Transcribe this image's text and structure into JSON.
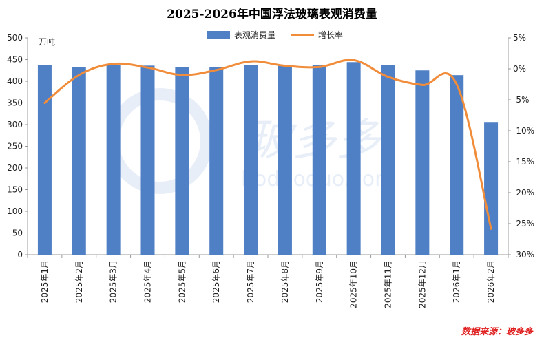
{
  "title": "2025-2026年中国浮法玻璃表观消费量",
  "unit_label": "万吨",
  "source": "数据来源：玻多多",
  "watermark": {
    "text_cn": "玻多多",
    "text_en": "boduoduo.com"
  },
  "colors": {
    "bar": "#4f7fc4",
    "line": "#f08c3a",
    "axis": "#9a9a9a",
    "source": "#e02020"
  },
  "chart_data": {
    "type": "bar",
    "categories": [
      "2025年1月",
      "2025年2月",
      "2025年3月",
      "2025年4月",
      "2025年5月",
      "2025年6月",
      "2025年7月",
      "2025年8月",
      "2025年9月",
      "2025年10月",
      "2025年11月",
      "2025年12月",
      "2026年1月",
      "2026年2月"
    ],
    "series": [
      {
        "name": "表观消费量",
        "type": "bar",
        "axis": "left",
        "values": [
          437,
          432,
          437,
          436,
          432,
          432,
          437,
          437,
          437,
          444,
          437,
          425,
          414,
          306
        ]
      },
      {
        "name": "增长率",
        "type": "line",
        "axis": "right",
        "unit": "%",
        "values": [
          -5.5,
          -1.0,
          0.8,
          0.2,
          -1.0,
          -0.2,
          1.2,
          0.5,
          0.3,
          1.4,
          -1.3,
          -2.6,
          -2.5,
          -25.8
        ]
      }
    ],
    "y_left": {
      "min": 0,
      "max": 500,
      "step": 50,
      "ticks": [
        "0",
        "50",
        "100",
        "150",
        "200",
        "250",
        "300",
        "350",
        "400",
        "450",
        "500"
      ]
    },
    "y_right": {
      "min": -30,
      "max": 5,
      "step": 5,
      "ticks": [
        "-30%",
        "-25%",
        "-20%",
        "-15%",
        "-10%",
        "-5%",
        "0%",
        "5%"
      ]
    },
    "legend_position": "top-center",
    "grid": false
  }
}
